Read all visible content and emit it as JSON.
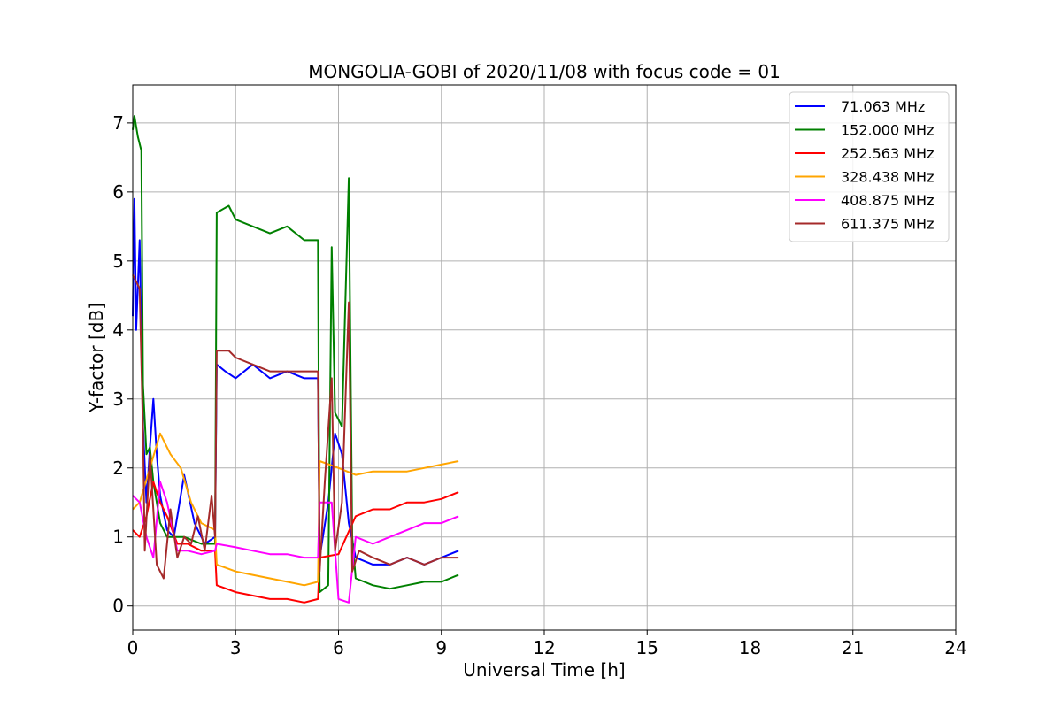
{
  "chart_data": {
    "type": "line",
    "title": "MONGOLIA-GOBI of 2020/11/08 with focus code = 01",
    "xlabel": "Universal Time [h]",
    "ylabel": "Y-factor [dB]",
    "xlim": [
      0,
      24
    ],
    "ylim": [
      -0.35,
      7.55
    ],
    "xticks": [
      0,
      3,
      6,
      9,
      12,
      15,
      18,
      21,
      24
    ],
    "yticks": [
      0,
      1,
      2,
      3,
      4,
      5,
      6,
      7
    ],
    "grid": true,
    "legend_position": "top-right",
    "series": [
      {
        "name": " 71.063 MHz",
        "color": "#0000ff",
        "points": [
          [
            0.0,
            4.2
          ],
          [
            0.05,
            5.9
          ],
          [
            0.1,
            4.0
          ],
          [
            0.2,
            5.3
          ],
          [
            0.3,
            2.6
          ],
          [
            0.4,
            1.5
          ],
          [
            0.5,
            2.3
          ],
          [
            0.6,
            3.0
          ],
          [
            0.7,
            2.2
          ],
          [
            0.8,
            1.6
          ],
          [
            1.0,
            1.1
          ],
          [
            1.2,
            1.0
          ],
          [
            1.5,
            1.9
          ],
          [
            1.8,
            1.2
          ],
          [
            2.1,
            0.9
          ],
          [
            2.4,
            1.0
          ],
          [
            2.45,
            3.5
          ],
          [
            2.7,
            3.4
          ],
          [
            3.0,
            3.3
          ],
          [
            3.5,
            3.5
          ],
          [
            4.0,
            3.3
          ],
          [
            4.5,
            3.4
          ],
          [
            5.0,
            3.3
          ],
          [
            5.4,
            3.3
          ],
          [
            5.45,
            0.7
          ],
          [
            5.7,
            1.5
          ],
          [
            5.9,
            2.5
          ],
          [
            6.1,
            2.2
          ],
          [
            6.3,
            1.2
          ],
          [
            6.5,
            0.7
          ],
          [
            7.0,
            0.6
          ],
          [
            7.5,
            0.6
          ],
          [
            8.0,
            0.7
          ],
          [
            8.5,
            0.6
          ],
          [
            9.0,
            0.7
          ],
          [
            9.5,
            0.8
          ]
        ]
      },
      {
        "name": "152.000 MHz",
        "color": "#008000",
        "points": [
          [
            0.0,
            6.9
          ],
          [
            0.05,
            7.1
          ],
          [
            0.15,
            6.8
          ],
          [
            0.25,
            6.6
          ],
          [
            0.3,
            3.2
          ],
          [
            0.4,
            2.2
          ],
          [
            0.5,
            2.3
          ],
          [
            0.6,
            1.8
          ],
          [
            0.8,
            1.2
          ],
          [
            1.0,
            1.0
          ],
          [
            1.5,
            1.0
          ],
          [
            2.0,
            0.9
          ],
          [
            2.4,
            0.9
          ],
          [
            2.45,
            5.7
          ],
          [
            2.8,
            5.8
          ],
          [
            3.0,
            5.6
          ],
          [
            3.5,
            5.5
          ],
          [
            4.0,
            5.4
          ],
          [
            4.5,
            5.5
          ],
          [
            5.0,
            5.3
          ],
          [
            5.4,
            5.3
          ],
          [
            5.45,
            0.2
          ],
          [
            5.7,
            0.3
          ],
          [
            5.8,
            5.2
          ],
          [
            5.9,
            2.8
          ],
          [
            6.1,
            2.6
          ],
          [
            6.3,
            6.2
          ],
          [
            6.4,
            1.0
          ],
          [
            6.5,
            0.4
          ],
          [
            7.0,
            0.3
          ],
          [
            7.5,
            0.25
          ],
          [
            8.0,
            0.3
          ],
          [
            8.5,
            0.35
          ],
          [
            9.0,
            0.35
          ],
          [
            9.5,
            0.45
          ]
        ]
      },
      {
        "name": "252.563 MHz",
        "color": "#ff0000",
        "points": [
          [
            0.0,
            1.1
          ],
          [
            0.2,
            1.0
          ],
          [
            0.4,
            1.3
          ],
          [
            0.6,
            1.8
          ],
          [
            0.8,
            1.5
          ],
          [
            1.0,
            1.3
          ],
          [
            1.3,
            0.9
          ],
          [
            1.6,
            0.9
          ],
          [
            2.0,
            0.8
          ],
          [
            2.4,
            0.8
          ],
          [
            2.45,
            0.3
          ],
          [
            3.0,
            0.2
          ],
          [
            3.5,
            0.15
          ],
          [
            4.0,
            0.1
          ],
          [
            4.5,
            0.1
          ],
          [
            5.0,
            0.05
          ],
          [
            5.4,
            0.1
          ],
          [
            5.45,
            0.7
          ],
          [
            6.0,
            0.75
          ],
          [
            6.5,
            1.3
          ],
          [
            7.0,
            1.4
          ],
          [
            7.5,
            1.4
          ],
          [
            8.0,
            1.5
          ],
          [
            8.5,
            1.5
          ],
          [
            9.0,
            1.55
          ],
          [
            9.5,
            1.65
          ]
        ]
      },
      {
        "name": "328.438 MHz",
        "color": "#ffa500",
        "points": [
          [
            0.0,
            1.4
          ],
          [
            0.2,
            1.5
          ],
          [
            0.5,
            2.0
          ],
          [
            0.8,
            2.5
          ],
          [
            1.1,
            2.2
          ],
          [
            1.4,
            2.0
          ],
          [
            1.7,
            1.5
          ],
          [
            2.0,
            1.2
          ],
          [
            2.4,
            1.1
          ],
          [
            2.45,
            0.6
          ],
          [
            3.0,
            0.5
          ],
          [
            3.5,
            0.45
          ],
          [
            4.0,
            0.4
          ],
          [
            4.5,
            0.35
          ],
          [
            5.0,
            0.3
          ],
          [
            5.4,
            0.35
          ],
          [
            5.45,
            2.1
          ],
          [
            6.0,
            2.0
          ],
          [
            6.5,
            1.9
          ],
          [
            7.0,
            1.95
          ],
          [
            7.5,
            1.95
          ],
          [
            8.0,
            1.95
          ],
          [
            8.5,
            2.0
          ],
          [
            9.0,
            2.05
          ],
          [
            9.5,
            2.1
          ]
        ]
      },
      {
        "name": "408.875 MHz",
        "color": "#ff00ff",
        "points": [
          [
            0.0,
            1.6
          ],
          [
            0.2,
            1.5
          ],
          [
            0.4,
            1.0
          ],
          [
            0.6,
            0.7
          ],
          [
            0.8,
            1.8
          ],
          [
            1.0,
            1.5
          ],
          [
            1.3,
            0.8
          ],
          [
            1.6,
            0.8
          ],
          [
            2.0,
            0.75
          ],
          [
            2.4,
            0.8
          ],
          [
            2.45,
            0.9
          ],
          [
            3.0,
            0.85
          ],
          [
            3.5,
            0.8
          ],
          [
            4.0,
            0.75
          ],
          [
            4.5,
            0.75
          ],
          [
            5.0,
            0.7
          ],
          [
            5.4,
            0.7
          ],
          [
            5.45,
            1.5
          ],
          [
            5.8,
            1.5
          ],
          [
            6.0,
            0.1
          ],
          [
            6.3,
            0.05
          ],
          [
            6.5,
            1.0
          ],
          [
            7.0,
            0.9
          ],
          [
            7.5,
            1.0
          ],
          [
            8.0,
            1.1
          ],
          [
            8.5,
            1.2
          ],
          [
            9.0,
            1.2
          ],
          [
            9.5,
            1.3
          ]
        ]
      },
      {
        "name": "611.375 MHz",
        "color": "#a52a2a",
        "points": [
          [
            0.0,
            4.8
          ],
          [
            0.1,
            4.7
          ],
          [
            0.2,
            4.6
          ],
          [
            0.3,
            2.5
          ],
          [
            0.35,
            0.8
          ],
          [
            0.5,
            2.2
          ],
          [
            0.7,
            0.6
          ],
          [
            0.9,
            0.4
          ],
          [
            1.1,
            1.4
          ],
          [
            1.3,
            0.7
          ],
          [
            1.5,
            1.0
          ],
          [
            1.7,
            0.9
          ],
          [
            1.9,
            1.3
          ],
          [
            2.1,
            0.8
          ],
          [
            2.3,
            1.6
          ],
          [
            2.4,
            1.0
          ],
          [
            2.45,
            3.7
          ],
          [
            2.8,
            3.7
          ],
          [
            3.0,
            3.6
          ],
          [
            3.5,
            3.5
          ],
          [
            4.0,
            3.4
          ],
          [
            4.5,
            3.4
          ],
          [
            5.0,
            3.4
          ],
          [
            5.4,
            3.4
          ],
          [
            5.45,
            0.5
          ],
          [
            5.6,
            1.8
          ],
          [
            5.8,
            3.3
          ],
          [
            5.9,
            0.8
          ],
          [
            6.1,
            1.5
          ],
          [
            6.3,
            4.4
          ],
          [
            6.4,
            0.5
          ],
          [
            6.6,
            0.8
          ],
          [
            7.0,
            0.7
          ],
          [
            7.5,
            0.6
          ],
          [
            8.0,
            0.7
          ],
          [
            8.5,
            0.6
          ],
          [
            9.0,
            0.7
          ],
          [
            9.5,
            0.7
          ]
        ]
      }
    ]
  }
}
